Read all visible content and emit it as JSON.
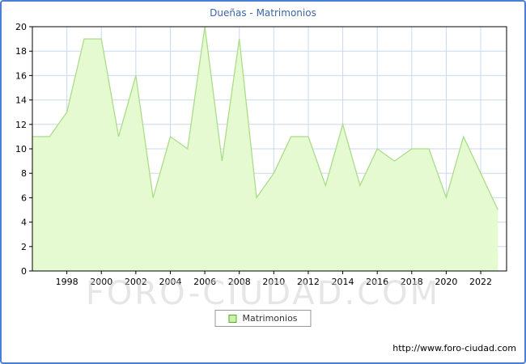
{
  "chart_data": {
    "type": "area",
    "title": "Dueñas - Matrimonios",
    "xlabel": "",
    "ylabel": "",
    "x": [
      1996,
      1997,
      1998,
      1999,
      2000,
      2001,
      2002,
      2003,
      2004,
      2005,
      2006,
      2007,
      2008,
      2009,
      2010,
      2011,
      2012,
      2013,
      2014,
      2015,
      2016,
      2017,
      2018,
      2019,
      2020,
      2021,
      2022,
      2023
    ],
    "values": [
      11,
      11,
      13,
      19,
      19,
      11,
      16,
      6,
      11,
      10,
      20,
      9,
      19,
      6,
      8,
      11,
      11,
      7,
      12,
      7,
      10,
      9,
      10,
      10,
      6,
      11,
      8,
      5
    ],
    "series_name": "Matrimonios",
    "xlim": [
      1996,
      2023.5
    ],
    "ylim": [
      0,
      20
    ],
    "xticks": [
      1998,
      2000,
      2002,
      2004,
      2006,
      2008,
      2010,
      2012,
      2014,
      2016,
      2018,
      2020,
      2022
    ],
    "yticks": [
      0,
      2,
      4,
      6,
      8,
      10,
      12,
      14,
      16,
      18,
      20
    ],
    "grid": true,
    "legend_position": "bottom-center"
  },
  "legend": {
    "label": "Matrimonios"
  },
  "watermark": "FORO-CIUDAD.COM",
  "footer": {
    "url": "http://www.foro-ciudad.com"
  },
  "colors": {
    "frame": "#4a7fd1",
    "title": "#3b64ac",
    "fill": "#e6fad2",
    "line": "#aadd88",
    "grid": "#c9d9f0",
    "plot_border": "#000000",
    "tick_text": "#000000",
    "legend_border": "#999999",
    "legend_swatch_fill": "#ccf2a6",
    "legend_swatch_border": "#55aa33",
    "watermark_gray": "#cfcfcf"
  }
}
